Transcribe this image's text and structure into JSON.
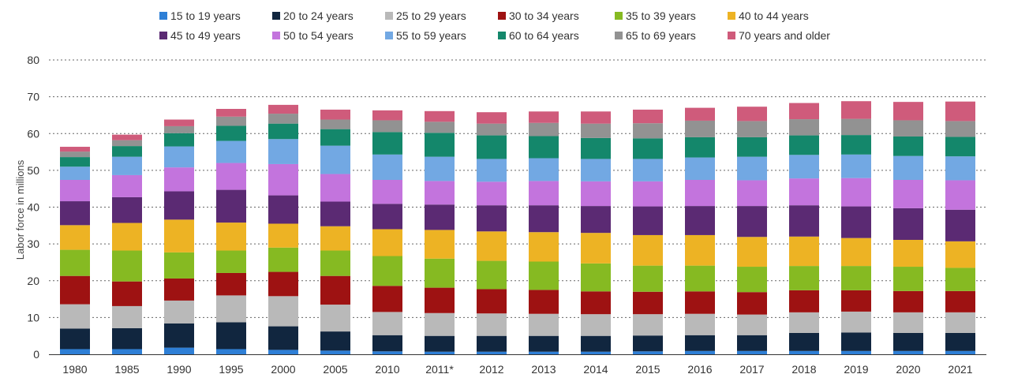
{
  "chart_data": {
    "type": "bar",
    "stacked": true,
    "ylabel": "Labor force in millions",
    "ylim": [
      0,
      80
    ],
    "yticks": [
      0,
      10,
      20,
      30,
      40,
      50,
      60,
      70,
      80
    ],
    "grid": true,
    "legend_position": "top",
    "categories": [
      "1980",
      "1985",
      "1990",
      "1995",
      "2000",
      "2005",
      "2010",
      "2011*",
      "2012",
      "2013",
      "2014",
      "2015",
      "2016",
      "2017",
      "2018",
      "2019",
      "2020",
      "2021"
    ],
    "series": [
      {
        "name": "15 to 19 years",
        "color": "#2e7fd6",
        "values": [
          1.4,
          1.4,
          1.8,
          1.4,
          1.2,
          1.0,
          0.8,
          0.7,
          0.7,
          0.7,
          0.7,
          0.8,
          0.9,
          0.9,
          0.9,
          0.9,
          0.9,
          0.9
        ]
      },
      {
        "name": "20 to 24 years",
        "color": "#11263f",
        "values": [
          5.6,
          5.7,
          6.6,
          7.3,
          6.4,
          5.2,
          4.4,
          4.3,
          4.3,
          4.3,
          4.3,
          4.3,
          4.3,
          4.3,
          4.9,
          5.0,
          4.9,
          4.9
        ]
      },
      {
        "name": "25 to 29 years",
        "color": "#b9b9b9",
        "values": [
          6.6,
          6.0,
          6.2,
          7.3,
          8.2,
          7.3,
          6.3,
          6.2,
          6.1,
          6.0,
          5.9,
          5.8,
          5.8,
          5.6,
          5.6,
          5.7,
          5.6,
          5.6
        ]
      },
      {
        "name": "30 to 34 years",
        "color": "#9e1212",
        "values": [
          7.7,
          6.7,
          6.0,
          6.1,
          6.6,
          7.8,
          7.1,
          6.9,
          6.6,
          6.5,
          6.2,
          6.1,
          6.1,
          6.1,
          6.0,
          5.8,
          5.8,
          5.8
        ]
      },
      {
        "name": "35 to 39 years",
        "color": "#86ba22",
        "values": [
          7.1,
          8.4,
          7.1,
          6.1,
          6.6,
          6.9,
          8.1,
          7.9,
          7.7,
          7.7,
          7.6,
          7.1,
          7.0,
          6.9,
          6.6,
          6.6,
          6.6,
          6.3
        ]
      },
      {
        "name": "40 to 44 years",
        "color": "#edb324",
        "values": [
          6.7,
          7.5,
          8.9,
          7.6,
          6.5,
          6.6,
          7.3,
          7.8,
          8.0,
          8.0,
          8.3,
          8.3,
          8.3,
          8.1,
          8.0,
          7.6,
          7.3,
          7.2
        ]
      },
      {
        "name": "45 to 49 years",
        "color": "#5b2a73",
        "values": [
          6.5,
          7.0,
          7.7,
          8.9,
          7.7,
          6.7,
          6.9,
          6.9,
          7.1,
          7.3,
          7.3,
          7.8,
          7.9,
          8.4,
          8.5,
          8.6,
          8.6,
          8.6
        ]
      },
      {
        "name": "50 to 54 years",
        "color": "#c374dd",
        "values": [
          5.8,
          6.0,
          6.5,
          7.3,
          8.5,
          7.5,
          6.5,
          6.4,
          6.4,
          6.6,
          6.7,
          6.8,
          7.1,
          7.0,
          7.3,
          7.7,
          7.7,
          8.0
        ]
      },
      {
        "name": "55 to 59 years",
        "color": "#72a8e3",
        "values": [
          3.6,
          5.0,
          5.7,
          6.0,
          6.8,
          7.7,
          6.9,
          6.6,
          6.2,
          6.2,
          6.1,
          6.1,
          6.1,
          6.4,
          6.4,
          6.4,
          6.5,
          6.5
        ]
      },
      {
        "name": "60 to 64 years",
        "color": "#14876b",
        "values": [
          2.6,
          2.9,
          3.6,
          4.1,
          4.2,
          4.5,
          6.1,
          6.5,
          6.4,
          6.0,
          5.7,
          5.6,
          5.5,
          5.3,
          5.3,
          5.3,
          5.3,
          5.3
        ]
      },
      {
        "name": "65 to 69 years",
        "color": "#929292",
        "values": [
          1.5,
          1.6,
          1.9,
          2.5,
          2.7,
          2.6,
          3.2,
          3.0,
          3.2,
          3.6,
          3.9,
          4.1,
          4.5,
          4.4,
          4.4,
          4.4,
          4.4,
          4.3
        ]
      },
      {
        "name": "70 years and older",
        "color": "#cf5b7b",
        "values": [
          1.3,
          1.5,
          1.8,
          2.1,
          2.4,
          2.7,
          2.7,
          2.9,
          3.1,
          3.1,
          3.3,
          3.7,
          3.5,
          3.9,
          4.4,
          4.8,
          5.0,
          5.3
        ]
      }
    ]
  }
}
